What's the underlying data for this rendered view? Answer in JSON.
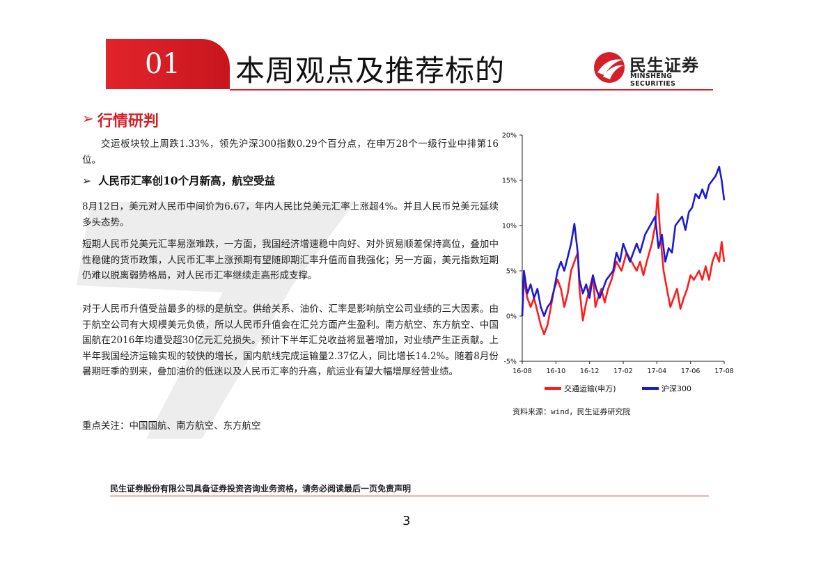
{
  "header": {
    "section_number": "01",
    "title": "本周观点及推荐标的",
    "logo_cn": "民生证券",
    "logo_en": "MINSHENG SECURITIES"
  },
  "section": {
    "arrow": "➢",
    "title": "行情研判"
  },
  "paragraphs": {
    "p1": "交运板块较上周跌1.33%，领先沪深300指数0.29个百分点，在申万28个一级行业中排第16位。",
    "subhead_arrow": "➢",
    "subhead": "人民币汇率创10个月新高，航空受益",
    "p2": "8月12日，美元对人民币中间价为6.67，年内人民比兑美元汇率上涨超4%。并且人民币兑美元延续多头态势。",
    "p3": "短期人民币兑美元汇率易涨难跌，一方面，我国经济增速稳中向好、对外贸易顺差保持高位，叠加中性稳健的货币政策，人民币汇率上涨预期有望随即期汇率升值而自我强化；另一方面，美元指数短期仍难以脱离弱势格局，对人民币汇率继续走高形成支撑。",
    "p4": "对于人民币升值受益最多的标的是航空。供给关系、油价、汇率是影响航空公司业绩的三大因素。由于航空公司有大规模美元负债，所以人民币升值会在汇兑方面产生盈利。南方航空、东方航空、中国国航在2016年均遭受超30亿元汇兑损失。预计下半年汇兑收益将显著增加，对业绩产生正贡献。上半年我国经济运输实现的较快的增长，国内航线完成运输量2.37亿人，同比增长14.2%。随着8月份暑期旺季的到来，叠加油价的低迷以及人民币汇率的升高，航运业有望大幅增厚经营业绩。",
    "focus": "重点关注：中国国航、南方航空、东方航空"
  },
  "chart_source": "资料来源：wind，民生证券研究院",
  "chart_data": {
    "type": "line",
    "x_ticks": [
      "16-08",
      "16-10",
      "16-12",
      "17-02",
      "17-04",
      "17-06",
      "17-08"
    ],
    "y_ticks": [
      "20%",
      "15%",
      "10%",
      "5%",
      "0%",
      "-5%"
    ],
    "ylim": [
      -5,
      20
    ],
    "xlim": [
      0,
      12
    ],
    "legend": "bottom",
    "series": [
      {
        "name": "交通运输(申万)",
        "color": "#ff1c1c",
        "points": [
          [
            0,
            0
          ],
          [
            0.1,
            4
          ],
          [
            0.3,
            2
          ],
          [
            0.5,
            1
          ],
          [
            0.7,
            2
          ],
          [
            0.9,
            0.5
          ],
          [
            1.1,
            -1
          ],
          [
            1.3,
            -2
          ],
          [
            1.5,
            -1
          ],
          [
            1.7,
            1
          ],
          [
            1.9,
            3
          ],
          [
            2.1,
            4
          ],
          [
            2.3,
            3
          ],
          [
            2.5,
            1
          ],
          [
            2.7,
            2.5
          ],
          [
            2.9,
            5
          ],
          [
            3.1,
            6
          ],
          [
            3.3,
            7
          ],
          [
            3.4,
            3
          ],
          [
            3.6,
            -0.5
          ],
          [
            3.8,
            1.5
          ],
          [
            4,
            3
          ],
          [
            4.2,
            4.5
          ],
          [
            4.35,
            1
          ],
          [
            4.5,
            2
          ],
          [
            4.7,
            3
          ],
          [
            4.9,
            1.5
          ],
          [
            5.1,
            3
          ],
          [
            5.3,
            4
          ],
          [
            5.6,
            6
          ],
          [
            5.9,
            5
          ],
          [
            6.2,
            7
          ],
          [
            6.5,
            6
          ],
          [
            6.8,
            5
          ],
          [
            7,
            6
          ],
          [
            7.2,
            4.5
          ],
          [
            7.4,
            6
          ],
          [
            7.7,
            8
          ],
          [
            7.9,
            10
          ],
          [
            8.05,
            13.5
          ],
          [
            8.2,
            9
          ],
          [
            8.4,
            5
          ],
          [
            8.6,
            3
          ],
          [
            8.8,
            1
          ],
          [
            9,
            2
          ],
          [
            9.2,
            3
          ],
          [
            9.4,
            0.8
          ],
          [
            9.6,
            2
          ],
          [
            9.8,
            3
          ],
          [
            10,
            4.5
          ],
          [
            10.2,
            4
          ],
          [
            10.5,
            5
          ],
          [
            10.7,
            4
          ],
          [
            10.9,
            5.5
          ],
          [
            11.1,
            4
          ],
          [
            11.3,
            6
          ],
          [
            11.5,
            7
          ],
          [
            11.7,
            6
          ],
          [
            11.85,
            8.2
          ],
          [
            12,
            6
          ]
        ]
      },
      {
        "name": "沪深300",
        "color": "#1a1ad4",
        "points": [
          [
            0,
            0
          ],
          [
            0.1,
            5
          ],
          [
            0.3,
            2.5
          ],
          [
            0.5,
            3.5
          ],
          [
            0.7,
            2
          ],
          [
            0.9,
            3
          ],
          [
            1.1,
            1
          ],
          [
            1.3,
            0
          ],
          [
            1.5,
            1
          ],
          [
            1.7,
            1.5
          ],
          [
            1.9,
            3
          ],
          [
            2.1,
            5
          ],
          [
            2.3,
            6
          ],
          [
            2.5,
            5
          ],
          [
            2.7,
            6.5
          ],
          [
            2.9,
            8
          ],
          [
            3.1,
            10.2
          ],
          [
            3.3,
            7
          ],
          [
            3.4,
            4
          ],
          [
            3.6,
            2.5
          ],
          [
            3.8,
            3.5
          ],
          [
            4,
            2
          ],
          [
            4.2,
            4.5
          ],
          [
            4.4,
            3
          ],
          [
            4.6,
            2
          ],
          [
            4.8,
            3
          ],
          [
            5,
            4
          ],
          [
            5.2,
            4.5
          ],
          [
            5.4,
            5
          ],
          [
            5.6,
            7
          ],
          [
            5.8,
            6
          ],
          [
            6,
            8
          ],
          [
            6.2,
            7
          ],
          [
            6.4,
            6
          ],
          [
            6.6,
            7
          ],
          [
            6.8,
            8
          ],
          [
            7,
            7
          ],
          [
            7.3,
            9
          ],
          [
            7.6,
            10
          ],
          [
            7.9,
            11
          ],
          [
            8.1,
            7.5
          ],
          [
            8.3,
            9
          ],
          [
            8.5,
            6
          ],
          [
            8.7,
            7.5
          ],
          [
            8.9,
            7
          ],
          [
            9.1,
            10
          ],
          [
            9.3,
            10.5
          ],
          [
            9.5,
            11
          ],
          [
            9.7,
            9.5
          ],
          [
            9.9,
            11.5
          ],
          [
            10.1,
            12
          ],
          [
            10.3,
            13.5
          ],
          [
            10.5,
            13
          ],
          [
            10.7,
            14
          ],
          [
            10.9,
            13
          ],
          [
            11.1,
            14.5
          ],
          [
            11.3,
            15
          ],
          [
            11.5,
            15.5
          ],
          [
            11.7,
            16.5
          ],
          [
            11.85,
            15
          ],
          [
            12,
            12.8
          ]
        ]
      }
    ]
  },
  "footer": {
    "disclaimer": "民生证券股份有限公司具备证券投资咨询业务资格，请务必阅读最后一页免责声明",
    "page_number": "3"
  },
  "colors": {
    "brand_red": "#d62028",
    "series_red": "#ff1c1c",
    "series_blue": "#1a1ad4"
  }
}
